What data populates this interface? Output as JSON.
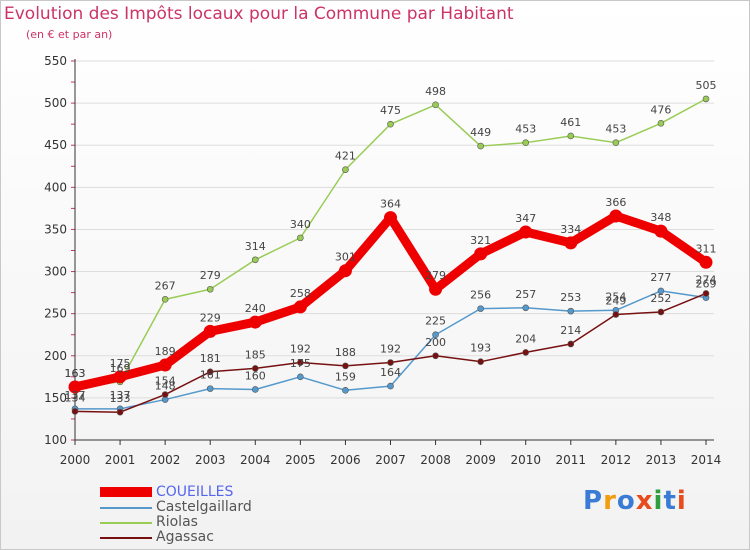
{
  "title": "Evolution des Impôts locaux pour la Commune par Habitant",
  "subtitle": "(en € et par an)",
  "brand": [
    "P",
    "r",
    "o",
    "x",
    "i",
    "t",
    "i"
  ],
  "brand_colors": [
    "#3a7bd5",
    "#f29c11",
    "#3a7bd5",
    "#e84c1c",
    "#2e9e3e",
    "#3a7bd5",
    "#e84c1c"
  ],
  "chart_data": {
    "type": "line",
    "title": "Evolution des Impôts locaux pour la Commune par Habitant",
    "ylabel": "(en € et par an)",
    "xlabel": "",
    "ylim": [
      100,
      550
    ],
    "yticks": [
      100,
      150,
      200,
      250,
      300,
      350,
      400,
      450,
      500,
      550
    ],
    "x": [
      "2000",
      "2001",
      "2002",
      "2003",
      "2004",
      "2005",
      "2006",
      "2007",
      "2008",
      "2009",
      "2010",
      "2011",
      "2012",
      "2013",
      "2014"
    ],
    "series": [
      {
        "name": "COUEILLES",
        "color": "#ee0000",
        "values": [
          163,
          175,
          189,
          229,
          240,
          258,
          301,
          364,
          279,
          321,
          347,
          334,
          366,
          348,
          311
        ],
        "labels": [
          "163",
          "175",
          "189",
          "229",
          "240",
          "258",
          "301",
          "364",
          "279",
          "321",
          "347",
          "334",
          "366",
          "348",
          "311"
        ]
      },
      {
        "name": "Castelgaillard",
        "color": "#5599cc",
        "values": [
          137,
          137,
          148,
          161,
          160,
          175,
          159,
          164,
          225,
          256,
          257,
          253,
          254,
          277,
          269
        ],
        "labels": [
          "137",
          "137",
          "148",
          "161",
          "160",
          "175",
          "159",
          "164",
          "225",
          "256",
          "257",
          "253",
          "254",
          "277",
          "269"
        ]
      },
      {
        "name": "Riolas",
        "color": "#99cc55",
        "values": [
          163,
          169,
          267,
          279,
          314,
          340,
          421,
          475,
          498,
          449,
          453,
          461,
          453,
          476,
          505
        ],
        "labels": [
          "163",
          "169",
          "267",
          "279",
          "314",
          "340",
          "421",
          "475",
          "498",
          "449",
          "453",
          "461",
          "453",
          "476",
          "505"
        ]
      },
      {
        "name": "Agassac",
        "color": "#771111",
        "values": [
          134,
          133,
          154,
          181,
          185,
          192,
          188,
          192,
          200,
          193,
          204,
          214,
          249,
          252,
          274
        ],
        "labels": [
          "134",
          "133",
          "154",
          "181",
          "185",
          "192",
          "188",
          "192",
          "200",
          "193",
          "204",
          "214",
          "249",
          "252",
          "274"
        ]
      }
    ]
  }
}
